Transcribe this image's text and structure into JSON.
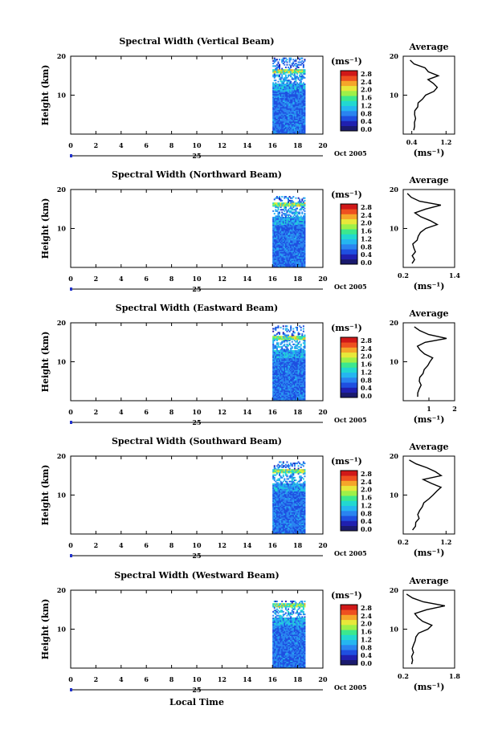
{
  "figure": {
    "xlabel": "Local Time",
    "date_label": "Oct 2005",
    "day_label": "25",
    "ylabel": "Height (km)",
    "avg_title": "Average",
    "unit_label": "(ms⁻¹)",
    "avg_xlabel": "(ms⁻¹)"
  },
  "colorbar": {
    "ticks": [
      "0.0",
      "0.4",
      "0.8",
      "1.2",
      "1.6",
      "2.0",
      "2.4",
      "2.8"
    ],
    "colors": [
      "#1a1a6e",
      "#2020b0",
      "#1f4fe0",
      "#2a84f0",
      "#25b6f0",
      "#22d8d0",
      "#3ce88e",
      "#9ef048",
      "#e8e83a",
      "#f5a62a",
      "#ee5020",
      "#d01818"
    ]
  },
  "chart_data": [
    {
      "type": "heatmap",
      "title": "Spectral Width (Vertical Beam)",
      "x_ticks": [
        "0",
        "2",
        "4",
        "6",
        "8",
        "10",
        "12",
        "14",
        "16",
        "18",
        "20"
      ],
      "y_ticks": [
        "10",
        "20"
      ],
      "xlim": [
        0,
        20
      ],
      "ylim": [
        0,
        20
      ],
      "data_time_range": [
        16.0,
        18.6
      ],
      "top_height_km": 19.6,
      "avg_profile": {
        "x_ticks": [
          "0.4",
          "1.2"
        ],
        "xlim": [
          0.2,
          1.4
        ],
        "heights": [
          1,
          2,
          3,
          4,
          5,
          6,
          7,
          8,
          9,
          10,
          11,
          12,
          13,
          14,
          15,
          16,
          17,
          18,
          19
        ],
        "values": [
          0.42,
          0.48,
          0.44,
          0.46,
          0.5,
          0.45,
          0.52,
          0.55,
          0.62,
          0.7,
          0.95,
          1.02,
          0.88,
          0.75,
          1.05,
          0.8,
          0.7,
          0.45,
          0.35
        ]
      }
    },
    {
      "type": "heatmap",
      "title": "Spectral Width (Northward Beam)",
      "x_ticks": [
        "0",
        "2",
        "4",
        "6",
        "8",
        "10",
        "12",
        "14",
        "16",
        "18",
        "20"
      ],
      "y_ticks": [
        "10",
        "20"
      ],
      "xlim": [
        0,
        20
      ],
      "ylim": [
        0,
        20
      ],
      "data_time_range": [
        16.0,
        18.6
      ],
      "top_height_km": 18.2,
      "avg_profile": {
        "x_ticks": [
          "0.2",
          "1.4"
        ],
        "xlim": [
          0.2,
          1.4
        ],
        "heights": [
          1,
          2,
          3,
          4,
          5,
          6,
          7,
          8,
          9,
          10,
          11,
          12,
          13,
          14,
          15,
          16,
          17,
          18,
          19
        ],
        "values": [
          0.4,
          0.45,
          0.42,
          0.48,
          0.44,
          0.46,
          0.5,
          0.55,
          0.6,
          0.75,
          1.0,
          0.85,
          0.6,
          0.45,
          0.7,
          1.1,
          0.55,
          0.4,
          0.3
        ]
      }
    },
    {
      "type": "heatmap",
      "title": "Spectral Width (Eastward Beam)",
      "x_ticks": [
        "0",
        "2",
        "4",
        "6",
        "8",
        "10",
        "12",
        "14",
        "16",
        "18",
        "20"
      ],
      "y_ticks": [
        "10",
        "20"
      ],
      "xlim": [
        0,
        20
      ],
      "ylim": [
        0,
        20
      ],
      "data_time_range": [
        16.0,
        18.6
      ],
      "top_height_km": 19.0,
      "avg_profile": {
        "x_ticks": [
          "1",
          "2"
        ],
        "xlim": [
          0,
          2
        ],
        "heights": [
          1,
          2,
          3,
          4,
          5,
          6,
          7,
          8,
          9,
          10,
          11,
          12,
          13,
          14,
          15,
          16,
          17,
          18,
          19
        ],
        "values": [
          0.55,
          0.6,
          0.58,
          0.65,
          0.62,
          0.7,
          0.75,
          0.8,
          0.9,
          1.05,
          1.1,
          0.85,
          0.7,
          0.55,
          0.9,
          1.7,
          1.0,
          0.6,
          0.4
        ]
      }
    },
    {
      "type": "heatmap",
      "title": "Spectral Width (Southward Beam)",
      "x_ticks": [
        "0",
        "2",
        "4",
        "6",
        "8",
        "10",
        "12",
        "14",
        "16",
        "18",
        "20"
      ],
      "y_ticks": [
        "10",
        "20"
      ],
      "xlim": [
        0,
        20
      ],
      "ylim": [
        0,
        20
      ],
      "data_time_range": [
        16.0,
        18.6
      ],
      "top_height_km": 18.5,
      "avg_profile": {
        "x_ticks": [
          "0.2",
          "1.2"
        ],
        "xlim": [
          0.2,
          1.4
        ],
        "heights": [
          1,
          2,
          3,
          4,
          5,
          6,
          7,
          8,
          9,
          10,
          11,
          12,
          13,
          14,
          15,
          16,
          17,
          18,
          19
        ],
        "values": [
          0.45,
          0.5,
          0.48,
          0.55,
          0.52,
          0.58,
          0.62,
          0.65,
          0.8,
          0.9,
          1.0,
          1.05,
          0.85,
          0.7,
          1.1,
          0.95,
          0.75,
          0.5,
          0.35
        ]
      }
    },
    {
      "type": "heatmap",
      "title": "Spectral Width (Westward Beam)",
      "x_ticks": [
        "0",
        "2",
        "4",
        "6",
        "8",
        "10",
        "12",
        "14",
        "16",
        "18",
        "20"
      ],
      "y_ticks": [
        "10",
        "20"
      ],
      "xlim": [
        0,
        20
      ],
      "ylim": [
        0,
        20
      ],
      "data_time_range": [
        16.0,
        18.6
      ],
      "top_height_km": 17.2,
      "avg_profile": {
        "x_ticks": [
          "0.2",
          "1.8"
        ],
        "xlim": [
          0.2,
          1.8
        ],
        "heights": [
          1,
          2,
          3,
          4,
          5,
          6,
          7,
          8,
          9,
          10,
          11,
          12,
          13,
          14,
          15,
          16,
          17,
          18,
          19
        ],
        "values": [
          0.45,
          0.5,
          0.48,
          0.52,
          0.5,
          0.55,
          0.6,
          0.62,
          0.7,
          0.95,
          1.1,
          0.85,
          0.7,
          0.6,
          0.9,
          1.5,
          0.8,
          0.45,
          0.3
        ]
      }
    }
  ]
}
